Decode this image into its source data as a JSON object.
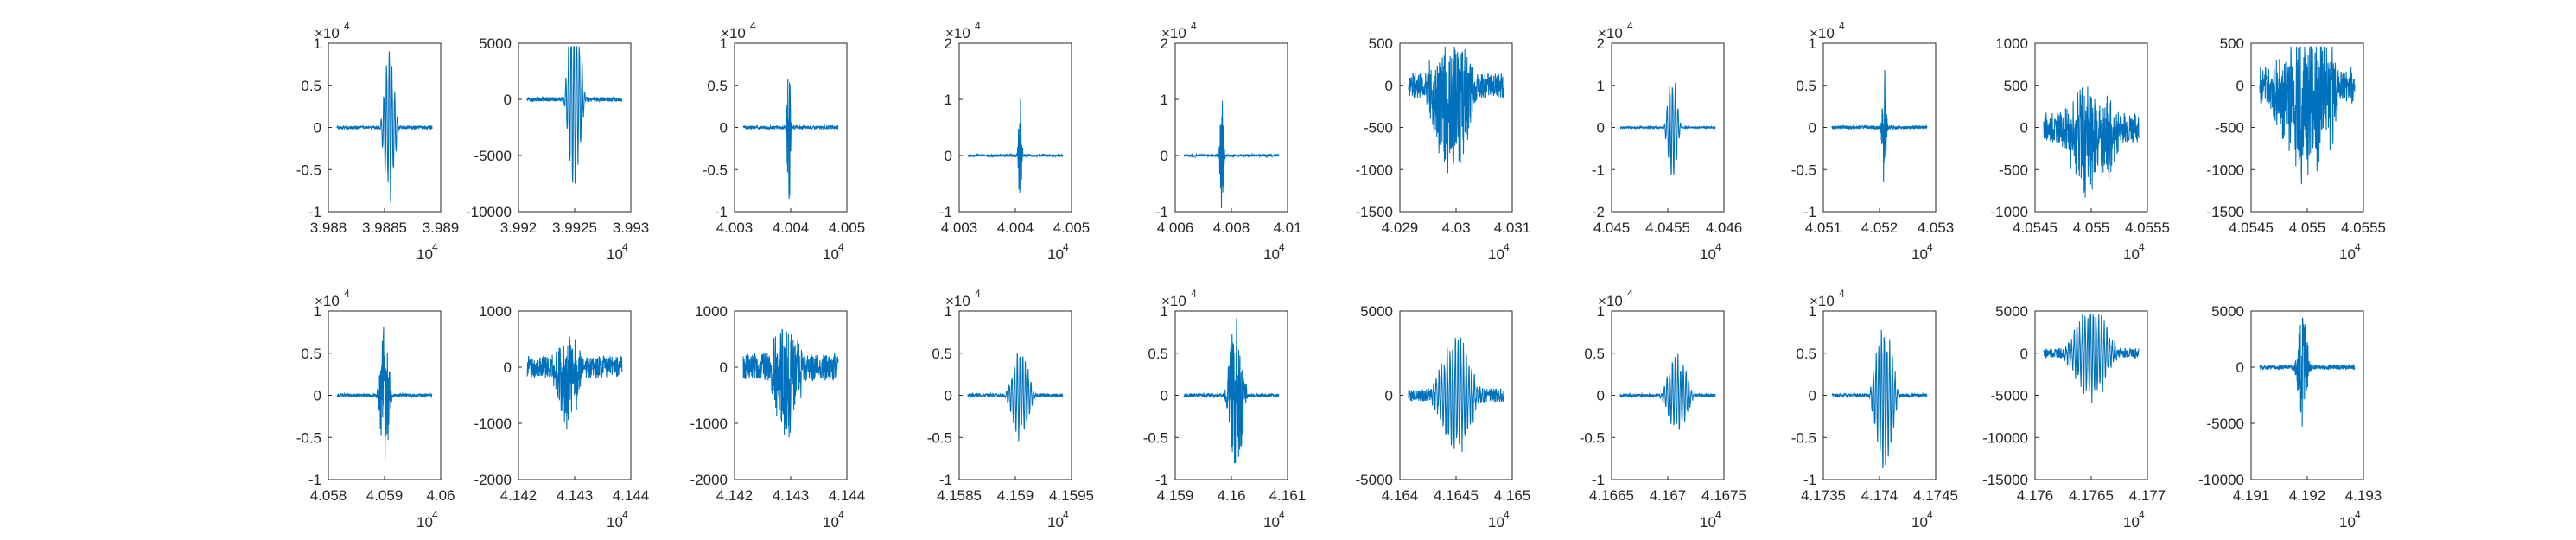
{
  "chart_data": [
    {
      "type": "line",
      "xticks": [
        "3.988",
        "3.9885",
        "3.989"
      ],
      "yticks": [
        "1",
        "0.5",
        "0",
        "-0.5",
        "-1"
      ],
      "ylim": [
        -1,
        1
      ],
      "xexp": "10",
      "xexp_power": "4",
      "yexp": "10",
      "yexp_power": "4",
      "signal": {
        "center": 0.55,
        "width": 0.22,
        "pattern": "wavelet",
        "amp": 0.95,
        "noise": 0.02,
        "count": 1,
        "seed": 1
      },
      "color": "#0072bd"
    },
    {
      "type": "line",
      "xticks": [
        "3.992",
        "3.9925",
        "3.993"
      ],
      "yticks": [
        "5000",
        "0",
        "-5000",
        "-10000"
      ],
      "ylim": [
        -10000,
        5000
      ],
      "xexp": "10",
      "xexp_power": "4",
      "yexp": "",
      "yexp_power": "",
      "signal": {
        "center": 0.5,
        "width": 0.25,
        "pattern": "wavelet",
        "amp": 9500,
        "noise": 200,
        "count": 1,
        "seed": 2
      },
      "color": "#0072bd"
    },
    {
      "type": "line",
      "xticks": [
        "4.003",
        "4.004",
        "4.005"
      ],
      "yticks": [
        "1",
        "0.5",
        "0",
        "-0.5",
        "-1"
      ],
      "ylim": [
        -1,
        1
      ],
      "xexp": "10",
      "xexp_power": "4",
      "yexp": "10",
      "yexp_power": "4",
      "signal": {
        "center": 0.48,
        "width": 0.08,
        "pattern": "burst",
        "amp": 0.8,
        "noise": 0.02,
        "count": 1,
        "seed": 3
      },
      "color": "#0072bd"
    },
    {
      "type": "line",
      "xticks": [
        "4.003",
        "4.004",
        "4.005"
      ],
      "yticks": [
        "2",
        "1",
        "0",
        "-1"
      ],
      "ylim": [
        -1,
        2
      ],
      "xexp": "10",
      "xexp_power": "4",
      "yexp": "10",
      "yexp_power": "4",
      "signal": {
        "center": 0.55,
        "width": 0.08,
        "pattern": "burst",
        "amp": 0.9,
        "noise": 0.02,
        "count": 1,
        "seed": 4
      },
      "color": "#0072bd"
    },
    {
      "type": "line",
      "xticks": [
        "4.006",
        "4.008",
        "4.01"
      ],
      "yticks": [
        "2",
        "1",
        "0",
        "-1"
      ],
      "ylim": [
        -1,
        2
      ],
      "xexp": "10",
      "xexp_power": "4",
      "yexp": "10",
      "yexp_power": "4",
      "signal": {
        "center": 0.4,
        "width": 0.08,
        "pattern": "burst",
        "amp": 0.9,
        "noise": 0.02,
        "count": 1,
        "seed": 5
      },
      "color": "#0072bd"
    },
    {
      "type": "line",
      "xticks": [
        "4.029",
        "4.03",
        "4.031"
      ],
      "yticks": [
        "500",
        "0",
        "-500",
        "-1000",
        "-1500"
      ],
      "ylim": [
        -1500,
        500
      ],
      "xexp": "10",
      "xexp_power": "4",
      "yexp": "",
      "yexp_power": "",
      "signal": {
        "center": 0.45,
        "width": 0.55,
        "pattern": "noise",
        "amp": 700,
        "noise": 150,
        "count": 1,
        "seed": 6
      },
      "color": "#0072bd"
    },
    {
      "type": "line",
      "xticks": [
        "4.045",
        "4.0455",
        "4.046"
      ],
      "yticks": [
        "2",
        "1",
        "0",
        "-1",
        "-2"
      ],
      "ylim": [
        -2,
        2
      ],
      "xexp": "10",
      "xexp_power": "4",
      "yexp": "10",
      "yexp_power": "4",
      "signal": {
        "center": 0.55,
        "width": 0.2,
        "pattern": "wavelet",
        "amp": 1.4,
        "noise": 0.02,
        "count": 1,
        "seed": 7
      },
      "color": "#0072bd"
    },
    {
      "type": "line",
      "xticks": [
        "4.051",
        "4.052",
        "4.053"
      ],
      "yticks": [
        "1",
        "0.5",
        "0",
        "-0.5",
        "-1"
      ],
      "ylim": [
        -1,
        1
      ],
      "xexp": "10",
      "xexp_power": "4",
      "yexp": "10",
      "yexp_power": "4",
      "signal": {
        "center": 0.55,
        "width": 0.1,
        "pattern": "burst",
        "amp": 0.6,
        "noise": 0.02,
        "count": 1,
        "seed": 8
      },
      "color": "#0072bd"
    },
    {
      "type": "line",
      "xticks": [
        "4.0545",
        "4.055",
        "4.0555"
      ],
      "yticks": [
        "1000",
        "500",
        "0",
        "-500",
        "-1000"
      ],
      "ylim": [
        -1000,
        1000
      ],
      "xexp": "10",
      "xexp_power": "4",
      "yexp": "",
      "yexp_power": "",
      "signal": {
        "center": 0.5,
        "width": 0.65,
        "pattern": "noise",
        "amp": 500,
        "noise": 180,
        "count": 1,
        "seed": 9
      },
      "color": "#0072bd"
    },
    {
      "type": "line",
      "xticks": [
        "4.0545",
        "4.055",
        "4.0555"
      ],
      "yticks": [
        "500",
        "0",
        "-500",
        "-1000",
        "-1500"
      ],
      "ylim": [
        -1500,
        500
      ],
      "xexp": "10",
      "xexp_power": "4",
      "yexp": "",
      "yexp_power": "",
      "signal": {
        "center": 0.5,
        "width": 0.8,
        "pattern": "noise",
        "amp": 700,
        "noise": 220,
        "count": 1,
        "seed": 10
      },
      "color": "#0072bd"
    },
    {
      "type": "line",
      "xticks": [
        "4.058",
        "4.059",
        "4.06"
      ],
      "yticks": [
        "1",
        "0.5",
        "0",
        "-0.5",
        "-1"
      ],
      "ylim": [
        -1,
        1
      ],
      "xexp": "10",
      "xexp_power": "4",
      "yexp": "10",
      "yexp_power": "4",
      "signal": {
        "center": 0.5,
        "width": 0.2,
        "pattern": "burst",
        "amp": 0.7,
        "noise": 0.02,
        "count": 1,
        "seed": 11
      },
      "color": "#0072bd"
    },
    {
      "type": "line",
      "xticks": [
        "4.142",
        "4.143",
        "4.144"
      ],
      "yticks": [
        "1000",
        "0",
        "-1000",
        "-2000"
      ],
      "ylim": [
        -2000,
        1000
      ],
      "xexp": "10",
      "xexp_power": "4",
      "yexp": "",
      "yexp_power": "",
      "signal": {
        "center": 0.42,
        "width": 0.32,
        "pattern": "noise",
        "amp": 700,
        "noise": 200,
        "count": 1,
        "seed": 12
      },
      "color": "#0072bd"
    },
    {
      "type": "line",
      "xticks": [
        "4.142",
        "4.143",
        "4.144"
      ],
      "yticks": [
        "1000",
        "0",
        "-1000",
        "-2000"
      ],
      "ylim": [
        -2000,
        1000
      ],
      "xexp": "10",
      "xexp_power": "4",
      "yexp": "",
      "yexp_power": "",
      "signal": {
        "center": 0.45,
        "width": 0.38,
        "pattern": "noise",
        "amp": 800,
        "noise": 250,
        "count": 1,
        "seed": 13
      },
      "color": "#0072bd"
    },
    {
      "type": "line",
      "xticks": [
        "4.1585",
        "4.159",
        "4.1595"
      ],
      "yticks": [
        "1",
        "0.5",
        "0",
        "-0.5",
        "-1"
      ],
      "ylim": [
        -1,
        1
      ],
      "xexp": "10",
      "xexp_power": "4",
      "yexp": "10",
      "yexp_power": "4",
      "signal": {
        "center": 0.55,
        "width": 0.35,
        "pattern": "wavelet",
        "amp": 0.55,
        "noise": 0.02,
        "count": 1,
        "seed": 14
      },
      "color": "#0072bd"
    },
    {
      "type": "line",
      "xticks": [
        "4.159",
        "4.16",
        "4.161"
      ],
      "yticks": [
        "1",
        "0.5",
        "0",
        "-0.5",
        "-1"
      ],
      "ylim": [
        -1,
        1
      ],
      "xexp": "10",
      "xexp_power": "4",
      "yexp": "10",
      "yexp_power": "4",
      "signal": {
        "center": 0.55,
        "width": 0.3,
        "pattern": "burst",
        "amp": 0.8,
        "noise": 0.02,
        "count": 1,
        "seed": 15
      },
      "color": "#0072bd"
    },
    {
      "type": "line",
      "xticks": [
        "4.164",
        "4.1645",
        "4.165"
      ],
      "yticks": [
        "5000",
        "0",
        "-5000"
      ],
      "ylim": [
        -5000,
        5000
      ],
      "xexp": "10",
      "xexp_power": "4",
      "yexp": "",
      "yexp_power": "",
      "signal": {
        "center": 0.5,
        "width": 0.6,
        "pattern": "wavelet",
        "amp": 3500,
        "noise": 400,
        "count": 1,
        "seed": 16
      },
      "color": "#0072bd"
    },
    {
      "type": "line",
      "xticks": [
        "4.1665",
        "4.167",
        "4.1675"
      ],
      "yticks": [
        "1",
        "0.5",
        "0",
        "-0.5",
        "-1"
      ],
      "ylim": [
        -1,
        1
      ],
      "xexp": "10",
      "xexp_power": "4",
      "yexp": "10",
      "yexp_power": "4",
      "signal": {
        "center": 0.6,
        "width": 0.4,
        "pattern": "wavelet",
        "amp": 0.5,
        "noise": 0.02,
        "count": 1,
        "seed": 17
      },
      "color": "#0072bd"
    },
    {
      "type": "line",
      "xticks": [
        "4.1735",
        "4.174",
        "4.1745"
      ],
      "yticks": [
        "1",
        "0.5",
        "0",
        "-0.5",
        "-1"
      ],
      "ylim": [
        -1,
        1
      ],
      "xexp": "10",
      "xexp_power": "4",
      "yexp": "10",
      "yexp_power": "4",
      "signal": {
        "center": 0.55,
        "width": 0.35,
        "pattern": "wavelet",
        "amp": 0.9,
        "noise": 0.02,
        "count": 1,
        "seed": 18
      },
      "color": "#0072bd"
    },
    {
      "type": "line",
      "xticks": [
        "4.176",
        "4.1765",
        "4.177"
      ],
      "yticks": [
        "5000",
        "0",
        "-5000",
        "-10000",
        "-15000"
      ],
      "ylim": [
        -15000,
        5000
      ],
      "xexp": "10",
      "xexp_power": "4",
      "yexp": "",
      "yexp_power": "",
      "signal": {
        "center": 0.5,
        "width": 0.65,
        "pattern": "wavelet",
        "amp": 6000,
        "noise": 600,
        "count": 1,
        "seed": 19
      },
      "color": "#0072bd"
    },
    {
      "type": "line",
      "xticks": [
        "4.191",
        "4.192",
        "4.193"
      ],
      "yticks": [
        "5000",
        "0",
        "-5000",
        "-10000"
      ],
      "ylim": [
        -10000,
        5000
      ],
      "xexp": "10",
      "xexp_power": "4",
      "yexp": "",
      "yexp_power": "",
      "signal": {
        "center": 0.45,
        "width": 0.22,
        "pattern": "burst",
        "amp": 4500,
        "noise": 200,
        "count": 1,
        "seed": 20
      },
      "color": "#0072bd"
    }
  ]
}
